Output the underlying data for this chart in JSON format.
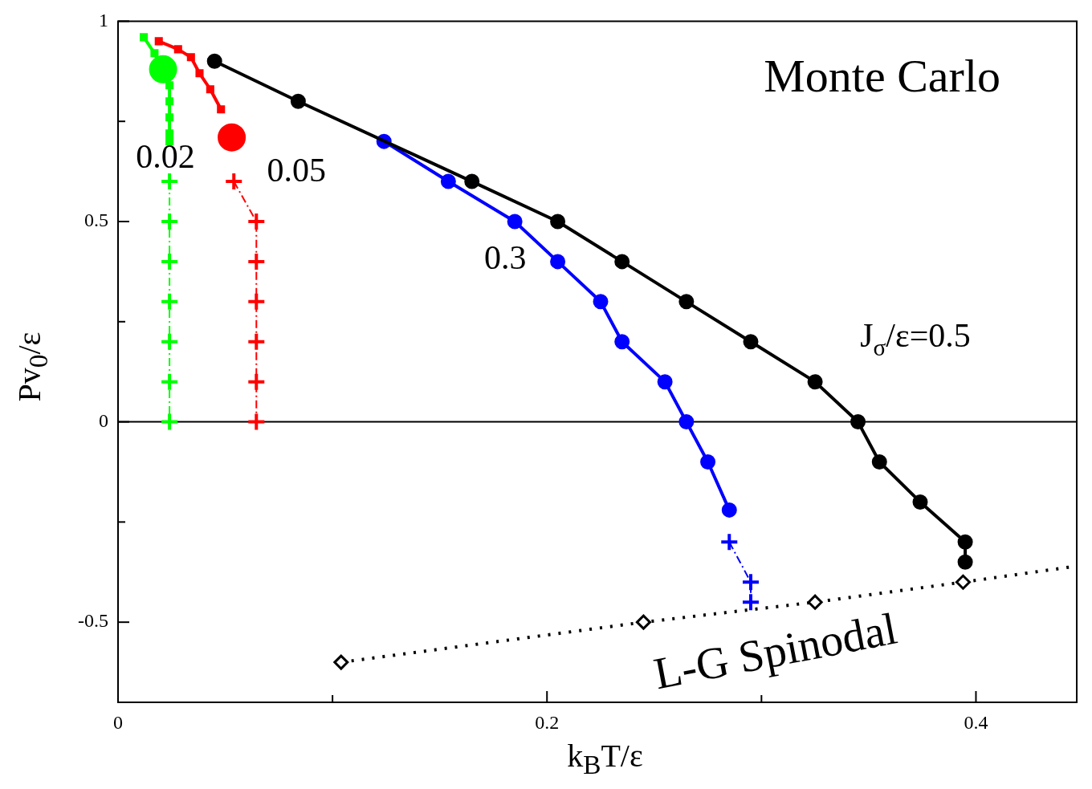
{
  "chart_data": {
    "type": "line",
    "xlabel": "k$_{B}$T/ε",
    "ylabel": "Pv$_{0}$/ε",
    "xlim": [
      0,
      0.447
    ],
    "ylim": [
      -0.7,
      1
    ],
    "xticks": [
      0,
      {
        "value": 0.1,
        "label": null
      },
      0.2,
      {
        "value": 0.3,
        "label": null
      },
      0.4
    ],
    "yticks": [
      -0.5,
      {
        "value": -0.25,
        "label": null
      },
      0,
      {
        "value": 0.25,
        "label": null
      },
      0.5,
      {
        "value": 0.75,
        "label": null
      },
      1
    ],
    "grid": false,
    "legend": false,
    "series": [
      {
        "name": "J$_{σ}$/ε=0.5",
        "color": "#000000",
        "marker": "circle",
        "line_style": "solid",
        "x": [
          0.045,
          0.084,
          0.165,
          0.205,
          0.235,
          0.265,
          0.295,
          0.325,
          0.345,
          0.355,
          0.374,
          0.395,
          0.395
        ],
        "values": [
          0.9,
          0.8,
          0.6,
          0.5,
          0.4,
          0.3,
          0.2,
          0.1,
          0,
          -0.1,
          -0.2,
          -0.3,
          -0.35
        ]
      },
      {
        "name": "0.3",
        "color": "#0000ff",
        "marker": "circle",
        "line_style": "solid",
        "x": [
          0.124,
          0.154,
          0.185,
          0.205,
          0.225,
          0.235,
          0.255,
          0.265,
          0.275,
          0.285
        ],
        "values": [
          0.7,
          0.6,
          0.5,
          0.4,
          0.3,
          0.2,
          0.1,
          0,
          -0.1,
          -0.22
        ]
      },
      {
        "color": "#0000ff",
        "marker": "cross",
        "line_style": "dashed",
        "x": [
          0.285,
          0.295,
          0.295
        ],
        "values": [
          -0.3,
          -0.4,
          -0.45
        ]
      },
      {
        "color": "#ff0000",
        "marker": "square",
        "line_style": "solid",
        "x": [
          0.019,
          0.028,
          0.034,
          0.038,
          0.043,
          0.048
        ],
        "values": [
          0.95,
          0.93,
          0.91,
          0.87,
          0.83,
          0.78
        ]
      },
      {
        "type": "scatter",
        "color": "#ff0000",
        "marker": "circle",
        "x": [
          0.053
        ],
        "values": [
          0.71
        ]
      },
      {
        "name": "0.05",
        "color": "#ff0000",
        "marker": "cross",
        "line_style": "dashed",
        "x": [
          0.054,
          0.0645,
          0.0645,
          0.0645,
          0.0645,
          0.0645,
          0.0645
        ],
        "values": [
          0.6,
          0.5,
          0.4,
          0.3,
          0.2,
          0.1,
          0
        ]
      },
      {
        "color": "#00ff00",
        "marker": "square",
        "line_style": "solid",
        "x": [
          0.012,
          0.017,
          0.024,
          0.024,
          0.024,
          0.024,
          0.024
        ],
        "values": [
          0.96,
          0.92,
          0.84,
          0.8,
          0.76,
          0.72,
          0.7
        ]
      },
      {
        "type": "scatter",
        "color": "#00ff00",
        "marker": "circle",
        "x": [
          0.021
        ],
        "values": [
          0.88
        ]
      },
      {
        "name": "0.02",
        "color": "#00ff00",
        "marker": "cross",
        "line_style": "dashed",
        "x": [
          0.024,
          0.024,
          0.024,
          0.024,
          0.024,
          0.024,
          0.024
        ],
        "values": [
          0.6,
          0.5,
          0.4,
          0.3,
          0.2,
          0.1,
          0
        ]
      },
      {
        "name": "L-G Spinodal",
        "color": "#000000",
        "marker": "diamond",
        "line_style": "dotted",
        "x": [
          0.104,
          0.245,
          0.325,
          0.394
        ],
        "values": [
          -0.6,
          -0.5,
          -0.45,
          -0.4
        ]
      },
      {
        "color": "#000000",
        "marker": "none",
        "line_style": "dotted",
        "x": [
          0.394,
          0.447
        ],
        "values": [
          -0.4,
          -0.36
        ]
      }
    ],
    "ref_lines": [
      {
        "axis": "y",
        "value": 0,
        "color": "#000000"
      }
    ],
    "annotations": [
      "Monte Carlo"
    ]
  }
}
